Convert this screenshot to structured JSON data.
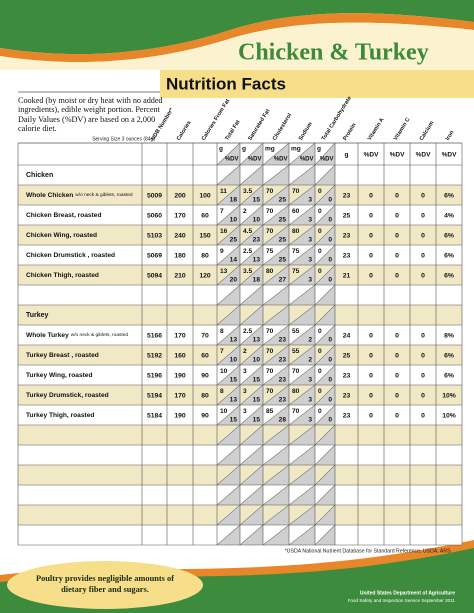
{
  "header": {
    "title": "Chicken & Turkey",
    "subtitle": "Nutrition Facts"
  },
  "intro": "Cooked (by moist or dry heat with no added ingredients), edible weight portion. Percent Daily Values (%DV) are based on a 2,000 calorie diet.",
  "serving": "Serving Size 3 ounces (84g)",
  "table": {
    "columns": [
      "NDB Number*",
      "Calories",
      "Calories From Fat",
      "Total Fat",
      "Saturated Fat",
      "Cholesterol",
      "Sodium",
      "Total Carbohydrate",
      "Protein",
      "Vitamin A",
      "Vitamin C",
      "Calcium",
      "Iron"
    ],
    "units": [
      [
        "g",
        "%DV"
      ],
      [
        "g",
        "%DV"
      ],
      [
        "mg",
        "%DV"
      ],
      [
        "mg",
        "%DV"
      ],
      [
        "g",
        "%DV"
      ],
      "g",
      "%DV",
      "%DV",
      "%DV",
      "%DV"
    ],
    "sections": [
      {
        "name": "Chicken",
        "items": [
          {
            "name": "Whole Chicken",
            "note": "w/o neck & giblets, roasted",
            "values": [
              5009,
              200,
              100,
              11,
              18,
              3.5,
              15,
              70,
              25,
              70,
              3,
              0,
              0,
              23,
              0,
              0,
              0,
              "6%"
            ]
          },
          {
            "name": "Chicken Breast, roasted",
            "values": [
              5060,
              170,
              60,
              7,
              10,
              2,
              10,
              70,
              25,
              60,
              3,
              0,
              0,
              25,
              0,
              0,
              0,
              "4%"
            ]
          },
          {
            "name": "Chicken Wing, roasted",
            "values": [
              5103,
              240,
              150,
              16,
              25,
              4.5,
              23,
              70,
              25,
              80,
              3,
              0,
              0,
              23,
              0,
              0,
              0,
              "6%"
            ]
          },
          {
            "name": "Chicken Drumstick , roasted",
            "values": [
              5069,
              180,
              80,
              9,
              14,
              2.5,
              13,
              75,
              25,
              75,
              3,
              0,
              0,
              23,
              0,
              0,
              0,
              "6%"
            ]
          },
          {
            "name": "Chicken Thigh, roasted",
            "values": [
              5094,
              210,
              120,
              13,
              20,
              3.5,
              18,
              80,
              27,
              75,
              3,
              0,
              0,
              21,
              0,
              0,
              0,
              "6%"
            ]
          }
        ]
      },
      {
        "name": "Turkey",
        "items": [
          {
            "name": "Whole Turkey",
            "note": "w/o neck & giblets, roasted",
            "values": [
              5166,
              170,
              70,
              8,
              13,
              2.5,
              13,
              70,
              23,
              55,
              2,
              0,
              0,
              24,
              0,
              0,
              0,
              "8%"
            ]
          },
          {
            "name": "Turkey Breast , roasted",
            "values": [
              5192,
              160,
              60,
              7,
              10,
              2,
              10,
              70,
              23,
              55,
              2,
              0,
              0,
              25,
              0,
              0,
              0,
              "6%"
            ]
          },
          {
            "name": "Turkey Wing, roasted",
            "values": [
              5196,
              190,
              90,
              10,
              15,
              3,
              15,
              70,
              23,
              70,
              3,
              0,
              0,
              23,
              0,
              0,
              0,
              "6%"
            ]
          },
          {
            "name": "Turkey Drumstick, roasted",
            "values": [
              5194,
              170,
              80,
              8,
              13,
              3,
              15,
              70,
              23,
              80,
              3,
              0,
              0,
              23,
              0,
              0,
              0,
              "10%"
            ]
          },
          {
            "name": "Turkey Thigh, roasted",
            "values": [
              5184,
              190,
              90,
              10,
              15,
              3,
              15,
              85,
              28,
              70,
              3,
              0,
              0,
              23,
              0,
              0,
              0,
              "10%"
            ]
          }
        ]
      }
    ]
  },
  "footnote": "*USDA National Nutrient Database for Standard Reference, USDA, ARS.",
  "bottom_note": "Poultry provides negligible amounts of dietary fiber and sugars.",
  "agency": "United States Department of Agriculture",
  "agency_line": "Food Safety and Inspection Service    September 2011"
}
